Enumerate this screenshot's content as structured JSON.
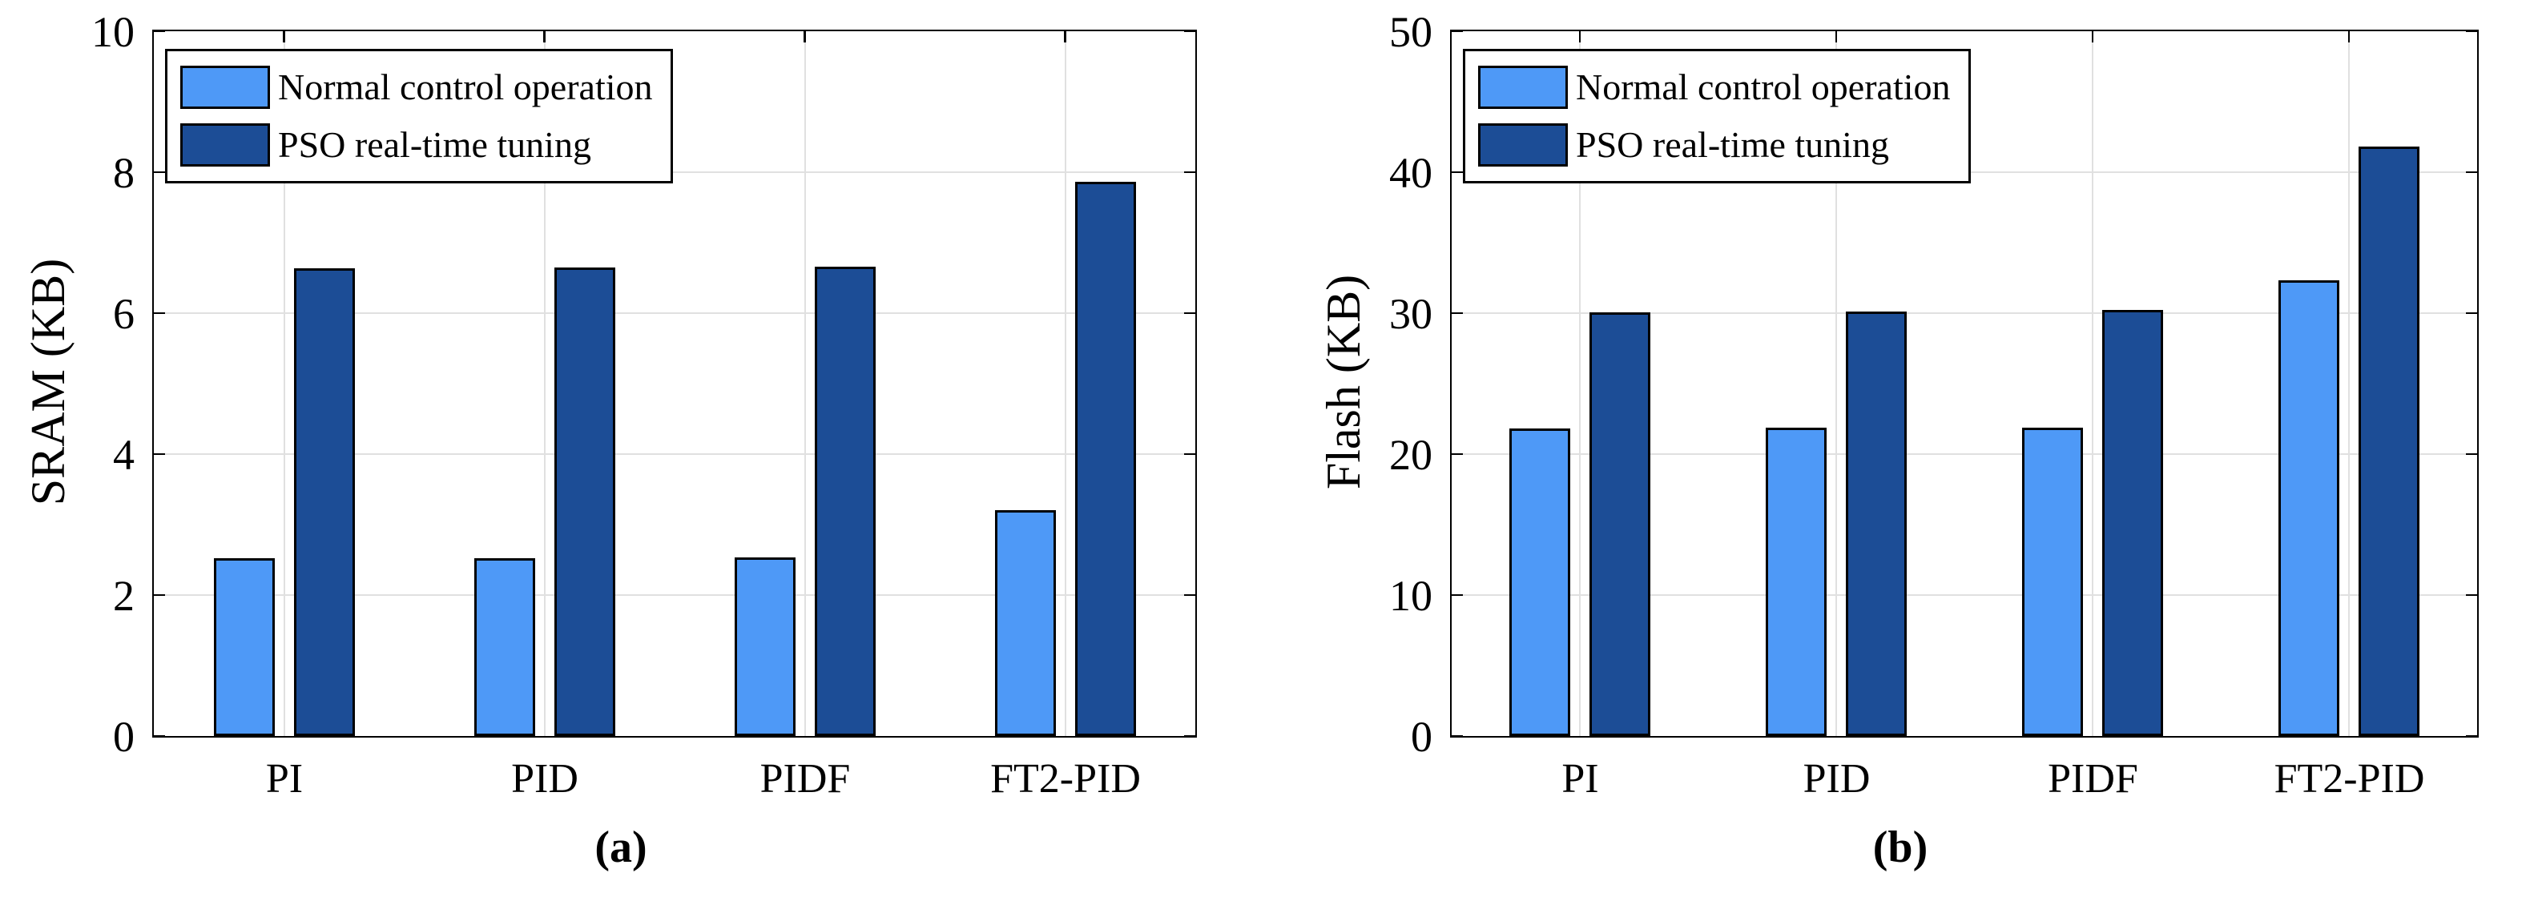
{
  "figure": {
    "background": "#FFFFFF",
    "axis_color": "#000000",
    "grid_color": "#E0E0E0",
    "series_colors": {
      "normal_control_operation": "#4E99F7",
      "pso_real_time_tuning": "#1C4D96"
    }
  },
  "chart_data": [
    {
      "type": "bar",
      "title": "",
      "xlabel": "",
      "ylabel": "SRAM (KB)",
      "caption": "(a)",
      "categories": [
        "PI",
        "PID",
        "PIDF",
        "FT2-PID"
      ],
      "ylim": [
        0,
        10
      ],
      "yticks": [
        0,
        2,
        4,
        6,
        8,
        10
      ],
      "grid": true,
      "legend_position": "northwest",
      "series": [
        {
          "name": "Normal control operation",
          "color": "#4E99F7",
          "values": [
            2.52,
            2.52,
            2.53,
            3.2
          ]
        },
        {
          "name": "PSO real-time tuning",
          "color": "#1C4D96",
          "values": [
            6.64,
            6.65,
            6.66,
            7.86
          ]
        }
      ]
    },
    {
      "type": "bar",
      "title": "",
      "xlabel": "",
      "ylabel": "Flash (KB)",
      "caption": "(b)",
      "categories": [
        "PI",
        "PID",
        "PIDF",
        "FT2-PID"
      ],
      "ylim": [
        0,
        50
      ],
      "yticks": [
        0,
        10,
        20,
        30,
        40,
        50
      ],
      "grid": true,
      "legend_position": "northwest",
      "series": [
        {
          "name": "Normal control operation",
          "color": "#4E99F7",
          "values": [
            21.8,
            21.85,
            21.9,
            32.35
          ]
        },
        {
          "name": "PSO real-time tuning",
          "color": "#1C4D96",
          "values": [
            30.05,
            30.1,
            30.2,
            41.8
          ]
        }
      ]
    }
  ]
}
